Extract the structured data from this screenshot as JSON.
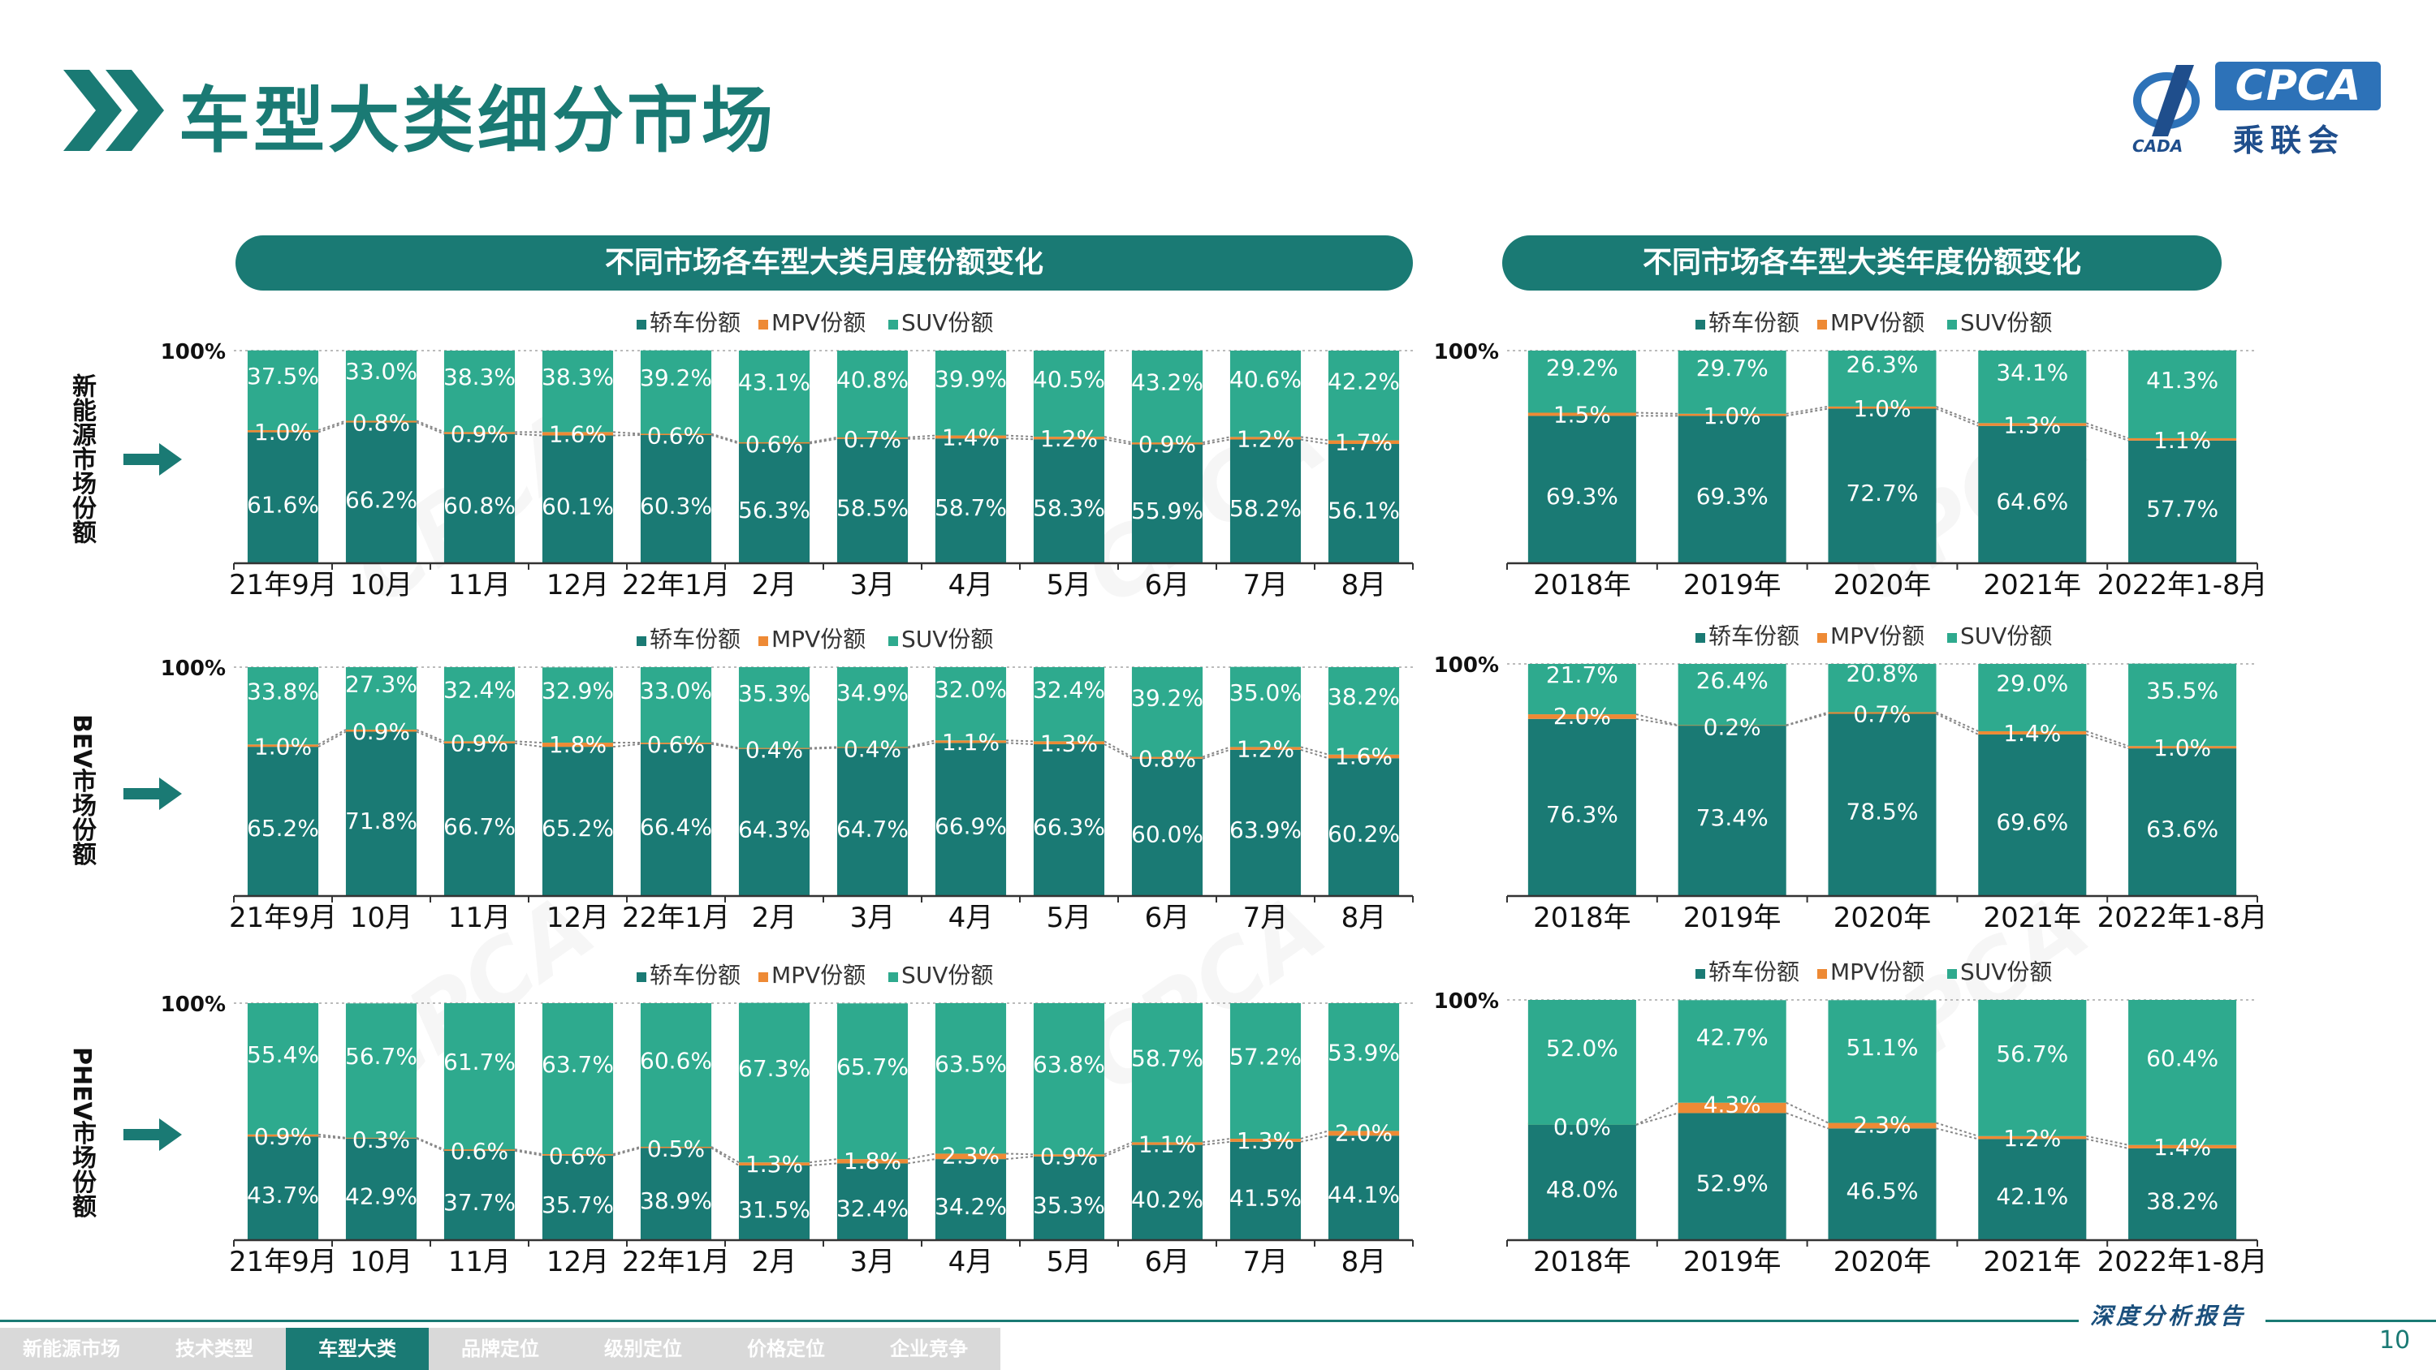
{
  "page": {
    "title": "车型大类细分市场",
    "logo_text": "CPCA",
    "logo_cn": "乘联会",
    "logo_sub": "CADA",
    "banner_monthly": "不同市场各车型大类月度份额变化",
    "banner_annual": "不同市场各车型大类年度份额变化",
    "report_tag": "深度分析报告",
    "page_number": "10",
    "colors": {
      "sedan": "#1a7a74",
      "mpv": "#ee8a35",
      "suv": "#2eaa8e",
      "accent": "#1a7a74"
    }
  },
  "footer": {
    "nav": [
      {
        "label": "新能源市场",
        "active": false
      },
      {
        "label": "技术类型",
        "active": false
      },
      {
        "label": "车型大类",
        "active": true
      },
      {
        "label": "品牌定位",
        "active": false
      },
      {
        "label": "级别定位",
        "active": false
      },
      {
        "label": "价格定位",
        "active": false
      },
      {
        "label": "企业竞争",
        "active": false
      }
    ]
  },
  "rows": [
    {
      "label": "新能源市场份额"
    },
    {
      "label": "BEV市场份额"
    },
    {
      "label": "PHEV市场份额"
    }
  ],
  "chart_data": [
    {
      "type": "bar",
      "stacked": true,
      "row": 0,
      "period": "monthly",
      "categories": [
        "21年9月",
        "10月",
        "11月",
        "12月",
        "22年1月",
        "2月",
        "3月",
        "4月",
        "5月",
        "6月",
        "7月",
        "8月"
      ],
      "legend": [
        "轿车份额",
        "MPV份额",
        "SUV份额"
      ],
      "ylim": [
        0,
        100
      ],
      "ytick": "100%",
      "series": [
        {
          "name": "轿车份额",
          "values": [
            61.6,
            66.2,
            60.8,
            60.1,
            60.3,
            56.3,
            58.5,
            58.7,
            58.3,
            55.9,
            58.2,
            56.1
          ]
        },
        {
          "name": "MPV份额",
          "values": [
            1.0,
            0.8,
            0.9,
            1.6,
            0.6,
            0.6,
            0.7,
            1.4,
            1.2,
            0.9,
            1.2,
            1.7
          ]
        },
        {
          "name": "SUV份额",
          "values": [
            37.5,
            33.0,
            38.3,
            38.3,
            39.2,
            43.1,
            40.8,
            39.9,
            40.5,
            43.2,
            40.6,
            42.2
          ]
        }
      ]
    },
    {
      "type": "bar",
      "stacked": true,
      "row": 0,
      "period": "annual",
      "categories": [
        "2018年",
        "2019年",
        "2020年",
        "2021年",
        "2022年1-8月"
      ],
      "legend": [
        "轿车份额",
        "MPV份额",
        "SUV份额"
      ],
      "ylim": [
        0,
        100
      ],
      "ytick": "100%",
      "series": [
        {
          "name": "轿车份额",
          "values": [
            69.3,
            69.3,
            72.7,
            64.6,
            57.7
          ]
        },
        {
          "name": "MPV份额",
          "values": [
            1.5,
            1.0,
            1.0,
            1.3,
            1.1
          ]
        },
        {
          "name": "SUV份额",
          "values": [
            29.2,
            29.7,
            26.3,
            34.1,
            41.3
          ]
        }
      ]
    },
    {
      "type": "bar",
      "stacked": true,
      "row": 1,
      "period": "monthly",
      "categories": [
        "21年9月",
        "10月",
        "11月",
        "12月",
        "22年1月",
        "2月",
        "3月",
        "4月",
        "5月",
        "6月",
        "7月",
        "8月"
      ],
      "legend": [
        "轿车份额",
        "MPV份额",
        "SUV份额"
      ],
      "ylim": [
        0,
        100
      ],
      "ytick": "100%",
      "series": [
        {
          "name": "轿车份额",
          "values": [
            65.2,
            71.8,
            66.7,
            65.2,
            66.4,
            64.3,
            64.7,
            66.9,
            66.3,
            60.0,
            63.9,
            60.2
          ]
        },
        {
          "name": "MPV份额",
          "values": [
            1.0,
            0.9,
            0.9,
            1.8,
            0.6,
            0.4,
            0.4,
            1.1,
            1.3,
            0.8,
            1.2,
            1.6
          ]
        },
        {
          "name": "SUV份额",
          "values": [
            33.8,
            27.3,
            32.4,
            32.9,
            33.0,
            35.3,
            34.9,
            32.0,
            32.4,
            39.2,
            35.0,
            38.2
          ]
        }
      ]
    },
    {
      "type": "bar",
      "stacked": true,
      "row": 1,
      "period": "annual",
      "categories": [
        "2018年",
        "2019年",
        "2020年",
        "2021年",
        "2022年1-8月"
      ],
      "legend": [
        "轿车份额",
        "MPV份额",
        "SUV份额"
      ],
      "ylim": [
        0,
        100
      ],
      "ytick": "100%",
      "series": [
        {
          "name": "轿车份额",
          "values": [
            76.3,
            73.4,
            78.5,
            69.6,
            63.6
          ]
        },
        {
          "name": "MPV份额",
          "values": [
            2.0,
            0.2,
            0.7,
            1.4,
            1.0
          ]
        },
        {
          "name": "SUV份额",
          "values": [
            21.7,
            26.4,
            20.8,
            29.0,
            35.5
          ]
        }
      ]
    },
    {
      "type": "bar",
      "stacked": true,
      "row": 2,
      "period": "monthly",
      "categories": [
        "21年9月",
        "10月",
        "11月",
        "12月",
        "22年1月",
        "2月",
        "3月",
        "4月",
        "5月",
        "6月",
        "7月",
        "8月"
      ],
      "legend": [
        "轿车份额",
        "MPV份额",
        "SUV份额"
      ],
      "ylim": [
        0,
        100
      ],
      "ytick": "100%",
      "series": [
        {
          "name": "轿车份额",
          "values": [
            43.7,
            42.9,
            37.7,
            35.7,
            38.9,
            31.5,
            32.4,
            34.2,
            35.3,
            40.2,
            41.5,
            44.1
          ]
        },
        {
          "name": "MPV份额",
          "values": [
            0.9,
            0.3,
            0.6,
            0.6,
            0.5,
            1.3,
            1.8,
            2.3,
            0.9,
            1.1,
            1.3,
            2.0
          ]
        },
        {
          "name": "SUV份额",
          "values": [
            55.4,
            56.7,
            61.7,
            63.7,
            60.6,
            67.3,
            65.7,
            63.5,
            63.8,
            58.7,
            57.2,
            53.9
          ]
        }
      ]
    },
    {
      "type": "bar",
      "stacked": true,
      "row": 2,
      "period": "annual",
      "categories": [
        "2018年",
        "2019年",
        "2020年",
        "2021年",
        "2022年1-8月"
      ],
      "legend": [
        "轿车份额",
        "MPV份额",
        "SUV份额"
      ],
      "ylim": [
        0,
        100
      ],
      "ytick": "100%",
      "series": [
        {
          "name": "轿车份额",
          "values": [
            48.0,
            52.9,
            46.5,
            42.1,
            38.2
          ]
        },
        {
          "name": "MPV份额",
          "values": [
            0.0,
            4.3,
            2.3,
            1.2,
            1.4
          ]
        },
        {
          "name": "SUV份额",
          "values": [
            52.0,
            42.7,
            51.1,
            56.7,
            60.4
          ]
        }
      ]
    }
  ]
}
